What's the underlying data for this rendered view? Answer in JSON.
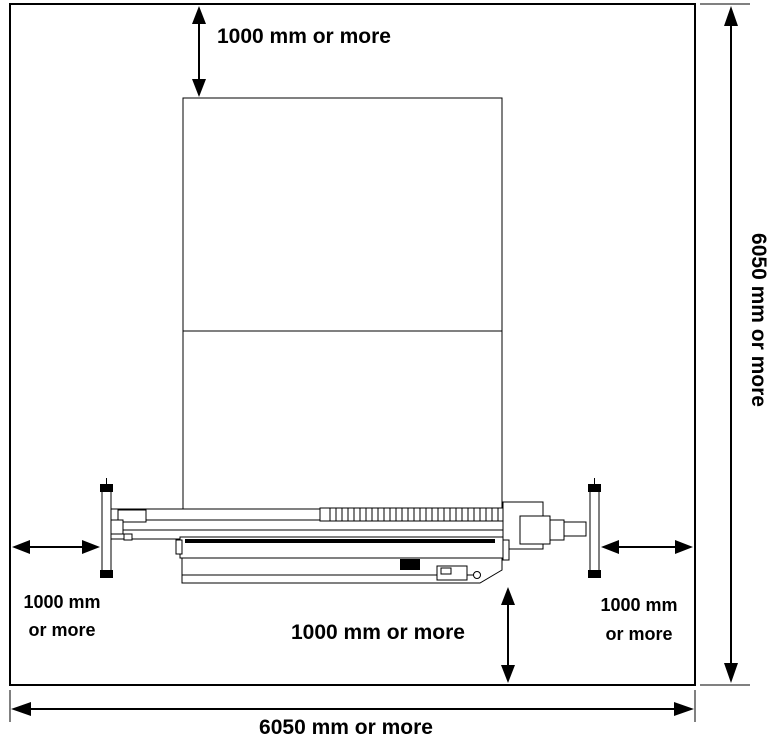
{
  "labels": {
    "top_clearance": "1000 mm or more",
    "left_clearance_line1": "1000 mm",
    "left_clearance_line2": "or more",
    "right_clearance_line1": "1000 mm",
    "right_clearance_line2": "or more",
    "front_clearance": "1000 mm or more",
    "total_width": "6050 mm or more",
    "total_depth": "6050 mm or more"
  },
  "colors": {
    "line": "#000000",
    "background": "#ffffff"
  }
}
